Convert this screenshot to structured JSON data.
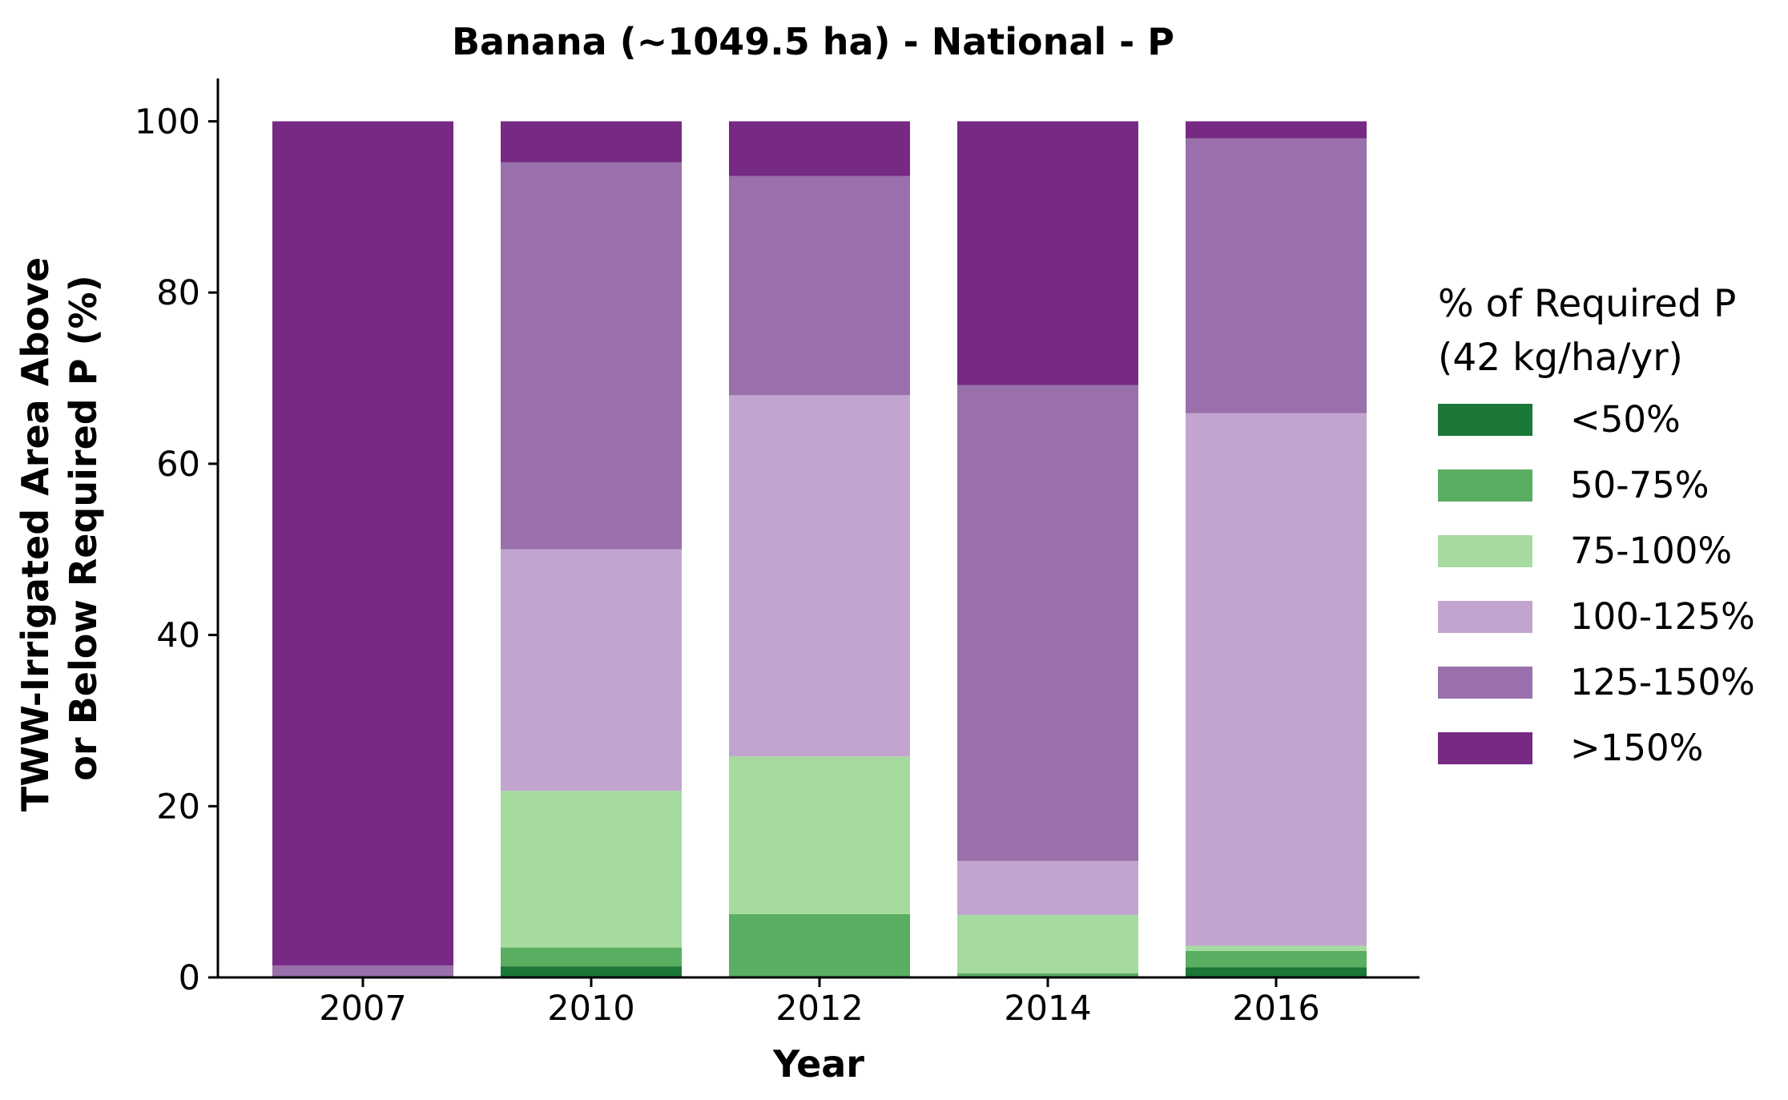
{
  "chart_data": {
    "type": "bar",
    "stacked": true,
    "title": "Banana (~1049.5 ha) - National - P",
    "xlabel": "Year",
    "ylabel_lines": [
      "TWW-Irrigated Area Above",
      "or Below Required P (%)"
    ],
    "ylim": [
      0,
      105
    ],
    "yticks": [
      0,
      20,
      40,
      60,
      80,
      100
    ],
    "grid": false,
    "legend_position": "right",
    "legend_title_lines": [
      "% of Required P",
      "(42 kg/ha/yr)"
    ],
    "categories": [
      "2007",
      "2010",
      "2012",
      "2014",
      "2016"
    ],
    "series": [
      {
        "name": "<50%",
        "color": "#1b7837",
        "values": [
          0,
          1.3,
          0,
          0,
          1.2
        ]
      },
      {
        "name": "50-75%",
        "color": "#5aae61",
        "values": [
          0,
          2.2,
          7.4,
          0.5,
          1.9
        ]
      },
      {
        "name": "75-100%",
        "color": "#a6dba0",
        "values": [
          0,
          18.3,
          18.4,
          6.8,
          0.6
        ]
      },
      {
        "name": "100-125%",
        "color": "#c2a5cf",
        "values": [
          0,
          28.2,
          42.2,
          6.3,
          62.2
        ]
      },
      {
        "name": "125-150%",
        "color": "#9970ab",
        "values": [
          1.4,
          45.2,
          25.6,
          55.6,
          32.1
        ]
      },
      {
        "name": ">150%",
        "color": "#762a83",
        "values": [
          98.6,
          4.8,
          6.4,
          30.8,
          2.0
        ]
      }
    ]
  }
}
